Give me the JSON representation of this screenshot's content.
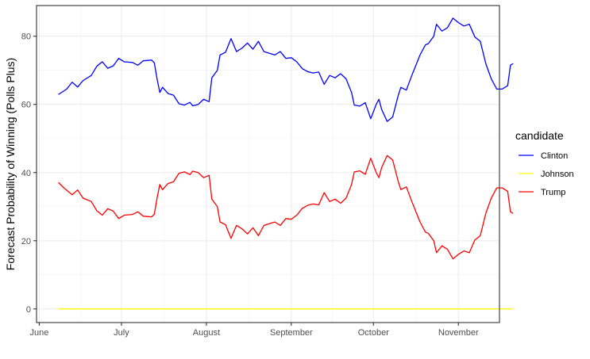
{
  "chart_data": {
    "type": "line",
    "xlabel": "",
    "ylabel": "Forecast Probability of Winning (Polls Plus)",
    "x_ticks": [
      "June",
      "July",
      "August",
      "September",
      "October",
      "November"
    ],
    "y_ticks": [
      0,
      20,
      40,
      60,
      80
    ],
    "ylim": [
      -4,
      89
    ],
    "xlim": [
      "2016-05-31",
      "2016-11-16"
    ],
    "grid": true,
    "legend_position": "right",
    "legend_title": "candidate",
    "series": [
      {
        "name": "Clinton",
        "color": "#0000ff",
        "points": [
          [
            "2016-06-08",
            62.9
          ],
          [
            "2016-06-11",
            64.5
          ],
          [
            "2016-06-13",
            66.5
          ],
          [
            "2016-06-15",
            65.1
          ],
          [
            "2016-06-17",
            67.0
          ],
          [
            "2016-06-20",
            68.5
          ],
          [
            "2016-06-22",
            71.2
          ],
          [
            "2016-06-24",
            72.5
          ],
          [
            "2016-06-26",
            70.6
          ],
          [
            "2016-06-28",
            71.3
          ],
          [
            "2016-06-30",
            73.5
          ],
          [
            "2016-07-02",
            72.5
          ],
          [
            "2016-07-05",
            72.3
          ],
          [
            "2016-07-07",
            71.5
          ],
          [
            "2016-07-09",
            72.8
          ],
          [
            "2016-07-12",
            73.0
          ],
          [
            "2016-07-13",
            72.2
          ],
          [
            "2016-07-14",
            67.5
          ],
          [
            "2016-07-15",
            63.5
          ],
          [
            "2016-07-16",
            65.0
          ],
          [
            "2016-07-18",
            63.2
          ],
          [
            "2016-07-20",
            62.7
          ],
          [
            "2016-07-22",
            60.2
          ],
          [
            "2016-07-24",
            59.8
          ],
          [
            "2016-07-26",
            60.6
          ],
          [
            "2016-07-27",
            59.6
          ],
          [
            "2016-07-29",
            60.0
          ],
          [
            "2016-07-31",
            61.5
          ],
          [
            "2016-08-02",
            60.8
          ],
          [
            "2016-08-03",
            67.8
          ],
          [
            "2016-08-05",
            70.0
          ],
          [
            "2016-08-06",
            74.5
          ],
          [
            "2016-08-08",
            75.3
          ],
          [
            "2016-08-10",
            79.3
          ],
          [
            "2016-08-12",
            75.5
          ],
          [
            "2016-08-14",
            76.5
          ],
          [
            "2016-08-16",
            78.0
          ],
          [
            "2016-08-18",
            76.2
          ],
          [
            "2016-08-20",
            78.5
          ],
          [
            "2016-08-22",
            75.5
          ],
          [
            "2016-08-24",
            75.0
          ],
          [
            "2016-08-26",
            74.5
          ],
          [
            "2016-08-28",
            75.5
          ],
          [
            "2016-08-30",
            73.5
          ],
          [
            "2016-09-01",
            73.7
          ],
          [
            "2016-09-03",
            72.5
          ],
          [
            "2016-09-05",
            70.5
          ],
          [
            "2016-09-07",
            69.6
          ],
          [
            "2016-09-09",
            69.2
          ],
          [
            "2016-09-11",
            69.5
          ],
          [
            "2016-09-13",
            65.9
          ],
          [
            "2016-09-15",
            68.5
          ],
          [
            "2016-09-17",
            67.8
          ],
          [
            "2016-09-19",
            69.0
          ],
          [
            "2016-09-21",
            67.5
          ],
          [
            "2016-09-23",
            63.5
          ],
          [
            "2016-09-24",
            59.8
          ],
          [
            "2016-09-26",
            59.5
          ],
          [
            "2016-09-28",
            60.5
          ],
          [
            "2016-09-30",
            55.8
          ],
          [
            "2016-10-02",
            60.0
          ],
          [
            "2016-10-03",
            61.5
          ],
          [
            "2016-10-04",
            58.5
          ],
          [
            "2016-10-06",
            55.0
          ],
          [
            "2016-10-08",
            56.3
          ],
          [
            "2016-10-10",
            62.5
          ],
          [
            "2016-10-11",
            65.0
          ],
          [
            "2016-10-13",
            64.2
          ],
          [
            "2016-10-15",
            68.5
          ],
          [
            "2016-10-17",
            72.5
          ],
          [
            "2016-10-18",
            74.5
          ],
          [
            "2016-10-20",
            77.5
          ],
          [
            "2016-10-21",
            77.8
          ],
          [
            "2016-10-23",
            80.0
          ],
          [
            "2016-10-24",
            83.5
          ],
          [
            "2016-10-26",
            81.5
          ],
          [
            "2016-10-28",
            82.5
          ],
          [
            "2016-10-30",
            85.3
          ],
          [
            "2016-11-01",
            84.0
          ],
          [
            "2016-11-03",
            83.0
          ],
          [
            "2016-11-05",
            83.5
          ],
          [
            "2016-11-07",
            79.8
          ],
          [
            "2016-11-09",
            78.5
          ],
          [
            "2016-11-11",
            72.0
          ],
          [
            "2016-11-13",
            67.5
          ],
          [
            "2016-11-15",
            64.5
          ],
          [
            "2016-11-17",
            64.5
          ],
          [
            "2016-11-19",
            65.5
          ],
          [
            "2016-11-20",
            71.5
          ],
          [
            "2016-11-21",
            72.0
          ]
        ]
      },
      {
        "name": "Johnson",
        "color": "#ffff00",
        "points": [
          [
            "2016-06-08",
            0
          ],
          [
            "2016-11-21",
            0
          ]
        ]
      },
      {
        "name": "Trump",
        "color": "#ff0000",
        "points": [
          [
            "2016-06-08",
            37.1
          ],
          [
            "2016-06-10",
            35.5
          ],
          [
            "2016-06-13",
            33.5
          ],
          [
            "2016-06-15",
            34.9
          ],
          [
            "2016-06-17",
            32.5
          ],
          [
            "2016-06-20",
            31.5
          ],
          [
            "2016-06-22",
            28.8
          ],
          [
            "2016-06-24",
            27.5
          ],
          [
            "2016-06-26",
            29.4
          ],
          [
            "2016-06-28",
            28.7
          ],
          [
            "2016-06-30",
            26.5
          ],
          [
            "2016-07-02",
            27.5
          ],
          [
            "2016-07-05",
            27.7
          ],
          [
            "2016-07-07",
            28.5
          ],
          [
            "2016-07-09",
            27.2
          ],
          [
            "2016-07-12",
            27.0
          ],
          [
            "2016-07-13",
            27.8
          ],
          [
            "2016-07-14",
            32.5
          ],
          [
            "2016-07-15",
            36.5
          ],
          [
            "2016-07-16",
            35.0
          ],
          [
            "2016-07-18",
            36.8
          ],
          [
            "2016-07-20",
            37.3
          ],
          [
            "2016-07-22",
            39.8
          ],
          [
            "2016-07-24",
            40.2
          ],
          [
            "2016-07-26",
            39.4
          ],
          [
            "2016-07-27",
            40.4
          ],
          [
            "2016-07-29",
            40.0
          ],
          [
            "2016-07-31",
            38.5
          ],
          [
            "2016-08-02",
            39.2
          ],
          [
            "2016-08-03",
            32.2
          ],
          [
            "2016-08-05",
            30.0
          ],
          [
            "2016-08-06",
            25.5
          ],
          [
            "2016-08-08",
            24.7
          ],
          [
            "2016-08-10",
            20.7
          ],
          [
            "2016-08-12",
            24.5
          ],
          [
            "2016-08-14",
            23.5
          ],
          [
            "2016-08-16",
            22.0
          ],
          [
            "2016-08-18",
            23.8
          ],
          [
            "2016-08-20",
            21.5
          ],
          [
            "2016-08-22",
            24.5
          ],
          [
            "2016-08-24",
            25.0
          ],
          [
            "2016-08-26",
            25.5
          ],
          [
            "2016-08-28",
            24.5
          ],
          [
            "2016-08-30",
            26.5
          ],
          [
            "2016-09-01",
            26.3
          ],
          [
            "2016-09-03",
            27.5
          ],
          [
            "2016-09-05",
            29.5
          ],
          [
            "2016-09-07",
            30.4
          ],
          [
            "2016-09-09",
            30.8
          ],
          [
            "2016-09-11",
            30.5
          ],
          [
            "2016-09-13",
            34.1
          ],
          [
            "2016-09-15",
            31.5
          ],
          [
            "2016-09-17",
            32.2
          ],
          [
            "2016-09-19",
            31.0
          ],
          [
            "2016-09-21",
            32.5
          ],
          [
            "2016-09-23",
            36.5
          ],
          [
            "2016-09-24",
            40.2
          ],
          [
            "2016-09-26",
            40.5
          ],
          [
            "2016-09-28",
            39.5
          ],
          [
            "2016-09-30",
            44.2
          ],
          [
            "2016-10-02",
            40.0
          ],
          [
            "2016-10-03",
            38.5
          ],
          [
            "2016-10-04",
            41.5
          ],
          [
            "2016-10-06",
            45.0
          ],
          [
            "2016-10-08",
            43.7
          ],
          [
            "2016-10-10",
            37.5
          ],
          [
            "2016-10-11",
            35.0
          ],
          [
            "2016-10-13",
            35.8
          ],
          [
            "2016-10-15",
            31.5
          ],
          [
            "2016-10-17",
            27.5
          ],
          [
            "2016-10-18",
            25.5
          ],
          [
            "2016-10-20",
            22.5
          ],
          [
            "2016-10-21",
            22.2
          ],
          [
            "2016-10-23",
            20.0
          ],
          [
            "2016-10-24",
            16.5
          ],
          [
            "2016-10-26",
            18.5
          ],
          [
            "2016-10-28",
            17.5
          ],
          [
            "2016-10-30",
            14.7
          ],
          [
            "2016-11-01",
            16.0
          ],
          [
            "2016-11-03",
            17.0
          ],
          [
            "2016-11-05",
            16.5
          ],
          [
            "2016-11-07",
            20.2
          ],
          [
            "2016-11-09",
            21.5
          ],
          [
            "2016-11-11",
            28.0
          ],
          [
            "2016-11-13",
            32.5
          ],
          [
            "2016-11-15",
            35.5
          ],
          [
            "2016-11-17",
            35.5
          ],
          [
            "2016-11-19",
            34.5
          ],
          [
            "2016-11-20",
            28.5
          ],
          [
            "2016-11-21",
            28.0
          ]
        ]
      }
    ]
  }
}
